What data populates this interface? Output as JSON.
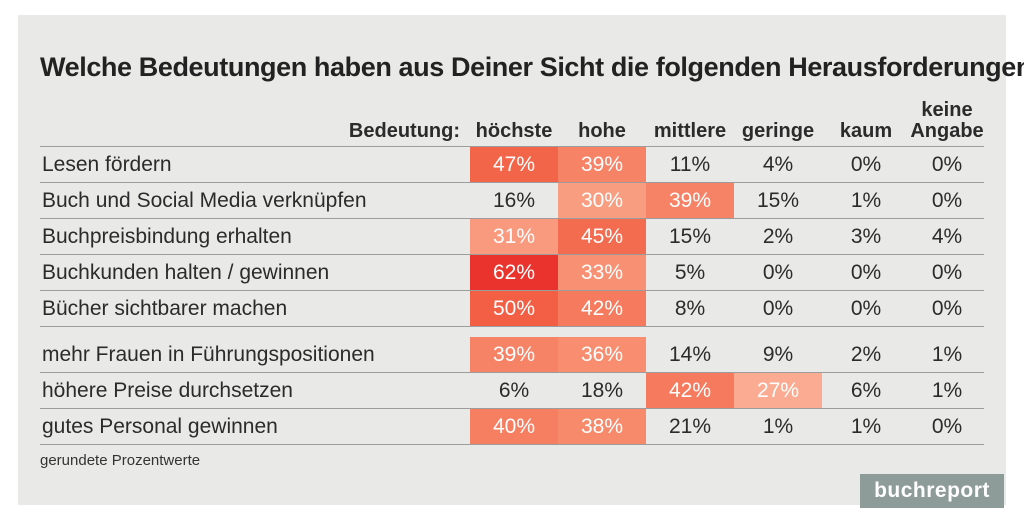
{
  "title": "Welche Bedeutungen haben aus Deiner Sicht die folgenden Herausforderungen?",
  "table": {
    "row_header_label": "Bedeutung:",
    "columns": [
      "höchste",
      "hohe",
      "mittlere",
      "geringe",
      "kaum",
      "keine Angabe"
    ],
    "rows": [
      {
        "label": "Lesen fördern",
        "values": [
          "47%",
          "39%",
          "11%",
          "4%",
          "0%",
          "0%"
        ],
        "colors": [
          "#f36549",
          "#f78367",
          null,
          null,
          null,
          null
        ]
      },
      {
        "label": "Buch und Social Media verknüpfen",
        "values": [
          "16%",
          "30%",
          "39%",
          "15%",
          "1%",
          "0%"
        ],
        "colors": [
          null,
          "#f99d81",
          "#f78367",
          null,
          null,
          null
        ]
      },
      {
        "label": "Buchpreisbindung erhalten",
        "values": [
          "31%",
          "45%",
          "15%",
          "2%",
          "3%",
          "4%"
        ],
        "colors": [
          "#f99a7e",
          "#f36c4f",
          null,
          null,
          null,
          null
        ]
      },
      {
        "label": "Buchkunden halten / gewinnen",
        "values": [
          "62%",
          "33%",
          "5%",
          "0%",
          "0%",
          "0%"
        ],
        "colors": [
          "#ea332d",
          "#f89174",
          null,
          null,
          null,
          null
        ]
      },
      {
        "label": "Bücher sichtbarer machen",
        "values": [
          "50%",
          "42%",
          "8%",
          "0%",
          "0%",
          "0%"
        ],
        "colors": [
          "#f25f44",
          "#f67a5d",
          null,
          null,
          null,
          null
        ]
      },
      {
        "label": "mehr Frauen in Führungspositionen",
        "values": [
          "39%",
          "36%",
          "14%",
          "9%",
          "2%",
          "1%"
        ],
        "colors": [
          "#f78367",
          "#f88d70",
          null,
          null,
          null,
          null
        ]
      },
      {
        "label": "höhere Preise durchsetzen",
        "values": [
          "6%",
          "18%",
          "42%",
          "27%",
          "6%",
          "1%"
        ],
        "colors": [
          null,
          null,
          "#f67a5d",
          "#fbab91",
          null,
          null
        ]
      },
      {
        "label": "gutes Personal gewinnen",
        "values": [
          "40%",
          "38%",
          "21%",
          "1%",
          "1%",
          "0%"
        ],
        "colors": [
          "#f67e61",
          "#f88a6c",
          null,
          null,
          null,
          null
        ]
      }
    ]
  },
  "footnote": "gerundete Prozentwerte",
  "logo": {
    "text": "buchreport"
  },
  "colors": {
    "panel_bg": "#e9e9e7",
    "divider": "#9c9c9c",
    "text": "#2b2b2b",
    "highlight_text": "#ffffff",
    "logo_bg": "#8d9b99",
    "logo_text": "#ffffff"
  },
  "chart_data": {
    "type": "heatmap",
    "title": "Welche Bedeutungen haben aus Deiner Sicht die folgenden Herausforderungen?",
    "categories": [
      "höchste",
      "hohe",
      "mittlere",
      "geringe",
      "kaum",
      "keine Angabe"
    ],
    "rows": [
      "Lesen fördern",
      "Buch und Social Media verknüpfen",
      "Buchpreisbindung erhalten",
      "Buchkunden halten / gewinnen",
      "Bücher sichtbarer machen",
      "mehr Frauen in Führungspositionen",
      "höhere Preise durchsetzen",
      "gutes Personal gewinnen"
    ],
    "values": [
      [
        47,
        39,
        11,
        4,
        0,
        0
      ],
      [
        16,
        30,
        39,
        15,
        1,
        0
      ],
      [
        31,
        45,
        15,
        2,
        3,
        4
      ],
      [
        62,
        33,
        5,
        0,
        0,
        0
      ],
      [
        50,
        42,
        8,
        0,
        0,
        0
      ],
      [
        39,
        36,
        14,
        9,
        2,
        1
      ],
      [
        6,
        18,
        42,
        27,
        6,
        1
      ],
      [
        40,
        38,
        21,
        1,
        1,
        0
      ]
    ],
    "unit": "%",
    "legend_label": "Bedeutung",
    "note": "gerundete Prozentwerte",
    "layout": {
      "highlight_threshold_percent": 27,
      "color_scale": "light orange (27%) to red (62%)",
      "grid": "horizontal dividers only"
    }
  }
}
